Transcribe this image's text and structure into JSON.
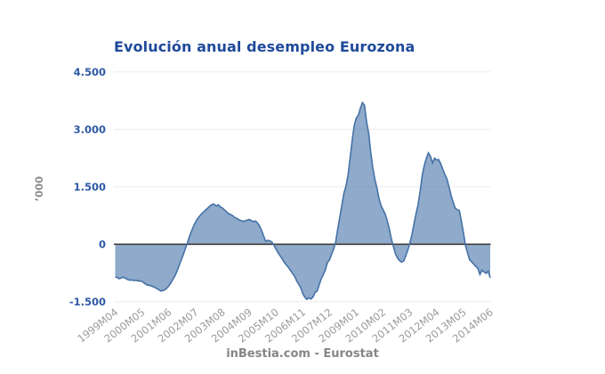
{
  "page": {
    "background": "#ffffff"
  },
  "chart_data": {
    "type": "area",
    "title": "Evolución anual desempleo Eurozona",
    "source": "inBestia.com - Eurostat",
    "ylabel": "’000",
    "xlabel": "",
    "legend": "none",
    "grid": "horizontal-only",
    "ylim": [
      -1500,
      4500
    ],
    "yticks": [
      4500,
      3000,
      1500,
      0,
      -1500
    ],
    "ytick_labels": [
      "4.500",
      "3.000",
      "1.500",
      "0",
      "-1.500"
    ],
    "x_start": "1999M04",
    "x_end": "2014M06",
    "frequency": "monthly",
    "xtick_every": 13,
    "xtick_labels": [
      "1999M04",
      "2000M05",
      "2001M06",
      "2002M07",
      "2003M08",
      "2004M09",
      "2005M10",
      "2006M11",
      "2007M12",
      "2009M01",
      "2010M02",
      "2011M03",
      "2012M04",
      "2013M05",
      "2014M06"
    ],
    "series": [
      {
        "values": [
          -850,
          -870,
          -900,
          -880,
          -860,
          -890,
          -920,
          -940,
          -930,
          -950,
          -940,
          -955,
          -960,
          -970,
          -1010,
          -1050,
          -1070,
          -1080,
          -1100,
          -1120,
          -1150,
          -1180,
          -1220,
          -1210,
          -1190,
          -1150,
          -1090,
          -1010,
          -920,
          -820,
          -700,
          -560,
          -420,
          -280,
          -120,
          30,
          200,
          340,
          470,
          580,
          670,
          740,
          800,
          850,
          900,
          950,
          1000,
          1040,
          1050,
          1000,
          1030,
          980,
          950,
          900,
          850,
          800,
          780,
          750,
          700,
          680,
          640,
          620,
          600,
          610,
          630,
          650,
          620,
          590,
          610,
          560,
          480,
          370,
          220,
          80,
          100,
          90,
          60,
          -20,
          -120,
          -220,
          -300,
          -380,
          -470,
          -540,
          -600,
          -680,
          -760,
          -830,
          -950,
          -1040,
          -1130,
          -1290,
          -1380,
          -1440,
          -1400,
          -1430,
          -1380,
          -1260,
          -1220,
          -1060,
          -900,
          -790,
          -670,
          -480,
          -405,
          -260,
          -130,
          60,
          400,
          700,
          1030,
          1340,
          1520,
          1810,
          2250,
          2700,
          3100,
          3300,
          3370,
          3560,
          3700,
          3630,
          3200,
          2900,
          2400,
          2000,
          1700,
          1480,
          1200,
          1010,
          900,
          790,
          620,
          410,
          150,
          -60,
          -250,
          -360,
          -430,
          -465,
          -440,
          -310,
          -150,
          30,
          250,
          530,
          800,
          1030,
          1400,
          1805,
          2060,
          2250,
          2385,
          2300,
          2120,
          2250,
          2200,
          2210,
          2100,
          1960,
          1820,
          1700,
          1500,
          1280,
          1100,
          950,
          900,
          880,
          600,
          300,
          -30,
          -230,
          -405,
          -460,
          -520,
          -580,
          -630,
          -790,
          -680,
          -720,
          -760,
          -700,
          -880
        ]
      }
    ],
    "colors": {
      "line": "#4572A7",
      "fill": "rgba(69,114,167,0.6)",
      "zero_line": "#3D3D3D",
      "grid": "#ECECEC",
      "title": "#1F4A9A",
      "ytick": "#2D59A5",
      "xtick": "#9B9B9B",
      "ytitle": "#8F8F8F",
      "footer": "#868686"
    }
  }
}
